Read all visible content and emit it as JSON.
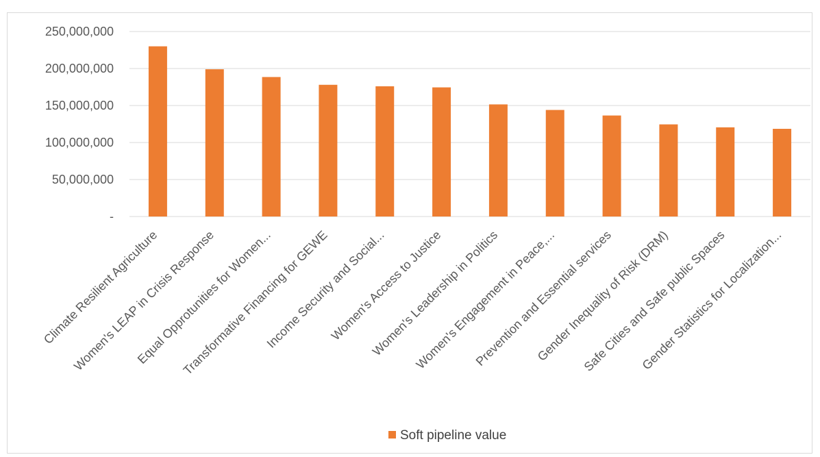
{
  "chart_data": {
    "type": "bar",
    "categories": [
      "Climate Resilient Agriculture",
      "Women's LEAP in Crisis Response",
      "Equal Opprotunities for Women...",
      "Transformative Financing for GEWE",
      "Income Security and Social...",
      "Women's Access to Justice",
      "Women's Leadership in Politics",
      "Women's Engagement in Peace,...",
      "Prevention and Essential services",
      "Gender Inequality of Risk (DRM)",
      "Safe Cities  and Safe public Spaces",
      "Gender Statistics for Localization..."
    ],
    "series": [
      {
        "name": "Soft pipeline value",
        "color": "#ED7D31",
        "values": [
          230000000,
          199000000,
          188500000,
          178000000,
          176000000,
          174500000,
          151500000,
          144000000,
          136500000,
          124500000,
          120500000,
          118500000
        ]
      }
    ],
    "ylim": [
      0,
      250000000
    ],
    "yticks": [
      {
        "value": 0,
        "label": "-"
      },
      {
        "value": 50000000,
        "label": "50,000,000"
      },
      {
        "value": 100000000,
        "label": "100,000,000"
      },
      {
        "value": 150000000,
        "label": "150,000,000"
      },
      {
        "value": 200000000,
        "label": "200,000,000"
      },
      {
        "value": 250000000,
        "label": "250,000,000"
      }
    ],
    "grid": true,
    "gridColor": "#d9d9d9",
    "legend_position": "bottom",
    "title": "",
    "xlabel": "",
    "ylabel": ""
  }
}
